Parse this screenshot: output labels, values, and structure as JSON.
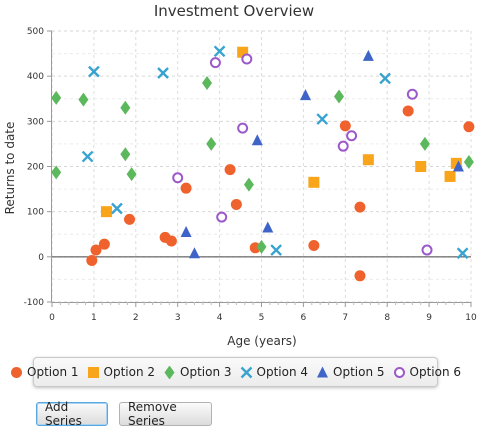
{
  "chart_data": {
    "type": "scatter",
    "title": "Investment Overview",
    "xlabel": "Age (years)",
    "ylabel": "Returns to date",
    "xlim": [
      0,
      10
    ],
    "ylim": [
      -100,
      500
    ],
    "xticks": [
      "0",
      "1",
      "2",
      "3",
      "4",
      "5",
      "6",
      "7",
      "8",
      "9",
      "10"
    ],
    "yticks": [
      "-100",
      "0",
      "100",
      "200",
      "300",
      "400",
      "500"
    ],
    "grid": true,
    "series": [
      {
        "name": "Option 1",
        "marker": "circle",
        "color": "#f0622d",
        "points": [
          [
            0.95,
            -8
          ],
          [
            1.05,
            15
          ],
          [
            1.25,
            28
          ],
          [
            1.85,
            83
          ],
          [
            2.7,
            43
          ],
          [
            2.85,
            35
          ],
          [
            3.2,
            152
          ],
          [
            4.25,
            193
          ],
          [
            4.4,
            116
          ],
          [
            4.85,
            20
          ],
          [
            6.25,
            25
          ],
          [
            7.0,
            290
          ],
          [
            7.35,
            110
          ],
          [
            7.35,
            -42
          ],
          [
            8.5,
            323
          ],
          [
            9.95,
            288
          ]
        ]
      },
      {
        "name": "Option 2",
        "marker": "square",
        "color": "#f9a51c",
        "points": [
          [
            1.3,
            100
          ],
          [
            4.55,
            453
          ],
          [
            6.25,
            165
          ],
          [
            7.55,
            215
          ],
          [
            8.8,
            200
          ],
          [
            9.5,
            178
          ],
          [
            9.65,
            207
          ]
        ]
      },
      {
        "name": "Option 3",
        "marker": "diamond",
        "color": "#5cb85c",
        "points": [
          [
            0.1,
            352
          ],
          [
            0.1,
            187
          ],
          [
            0.75,
            348
          ],
          [
            1.75,
            330
          ],
          [
            1.75,
            227
          ],
          [
            1.9,
            183
          ],
          [
            3.7,
            385
          ],
          [
            3.8,
            250
          ],
          [
            4.7,
            160
          ],
          [
            5.0,
            22
          ],
          [
            6.85,
            355
          ],
          [
            8.9,
            250
          ],
          [
            9.95,
            210
          ]
        ]
      },
      {
        "name": "Option 4",
        "marker": "cross",
        "color": "#39a3cf",
        "points": [
          [
            1.0,
            410
          ],
          [
            0.85,
            222
          ],
          [
            1.55,
            107
          ],
          [
            2.65,
            407
          ],
          [
            4.0,
            455
          ],
          [
            5.35,
            15
          ],
          [
            6.45,
            305
          ],
          [
            7.95,
            395
          ],
          [
            9.8,
            8
          ]
        ]
      },
      {
        "name": "Option 5",
        "marker": "triangle",
        "color": "#3f64c8",
        "points": [
          [
            3.2,
            55
          ],
          [
            3.4,
            8
          ],
          [
            4.9,
            258
          ],
          [
            5.15,
            65
          ],
          [
            6.05,
            358
          ],
          [
            7.55,
            445
          ],
          [
            9.7,
            200
          ]
        ]
      },
      {
        "name": "Option 6",
        "marker": "ring",
        "color": "#9b59c9",
        "points": [
          [
            3.0,
            175
          ],
          [
            3.9,
            430
          ],
          [
            4.05,
            88
          ],
          [
            4.55,
            285
          ],
          [
            4.65,
            438
          ],
          [
            6.95,
            245
          ],
          [
            7.15,
            268
          ],
          [
            8.6,
            360
          ],
          [
            8.95,
            15
          ]
        ]
      }
    ]
  },
  "legend": {
    "items": [
      {
        "label": "Option 1",
        "color": "#f0622d",
        "marker": "circle"
      },
      {
        "label": "Option 2",
        "color": "#f9a51c",
        "marker": "square"
      },
      {
        "label": "Option 3",
        "color": "#5cb85c",
        "marker": "diamond"
      },
      {
        "label": "Option 4",
        "color": "#39a3cf",
        "marker": "cross"
      },
      {
        "label": "Option 5",
        "color": "#3f64c8",
        "marker": "triangle"
      },
      {
        "label": "Option 6",
        "color": "#9b59c9",
        "marker": "ring"
      }
    ]
  },
  "controls": {
    "add_label": "Add Series",
    "remove_label": "Remove Series"
  }
}
